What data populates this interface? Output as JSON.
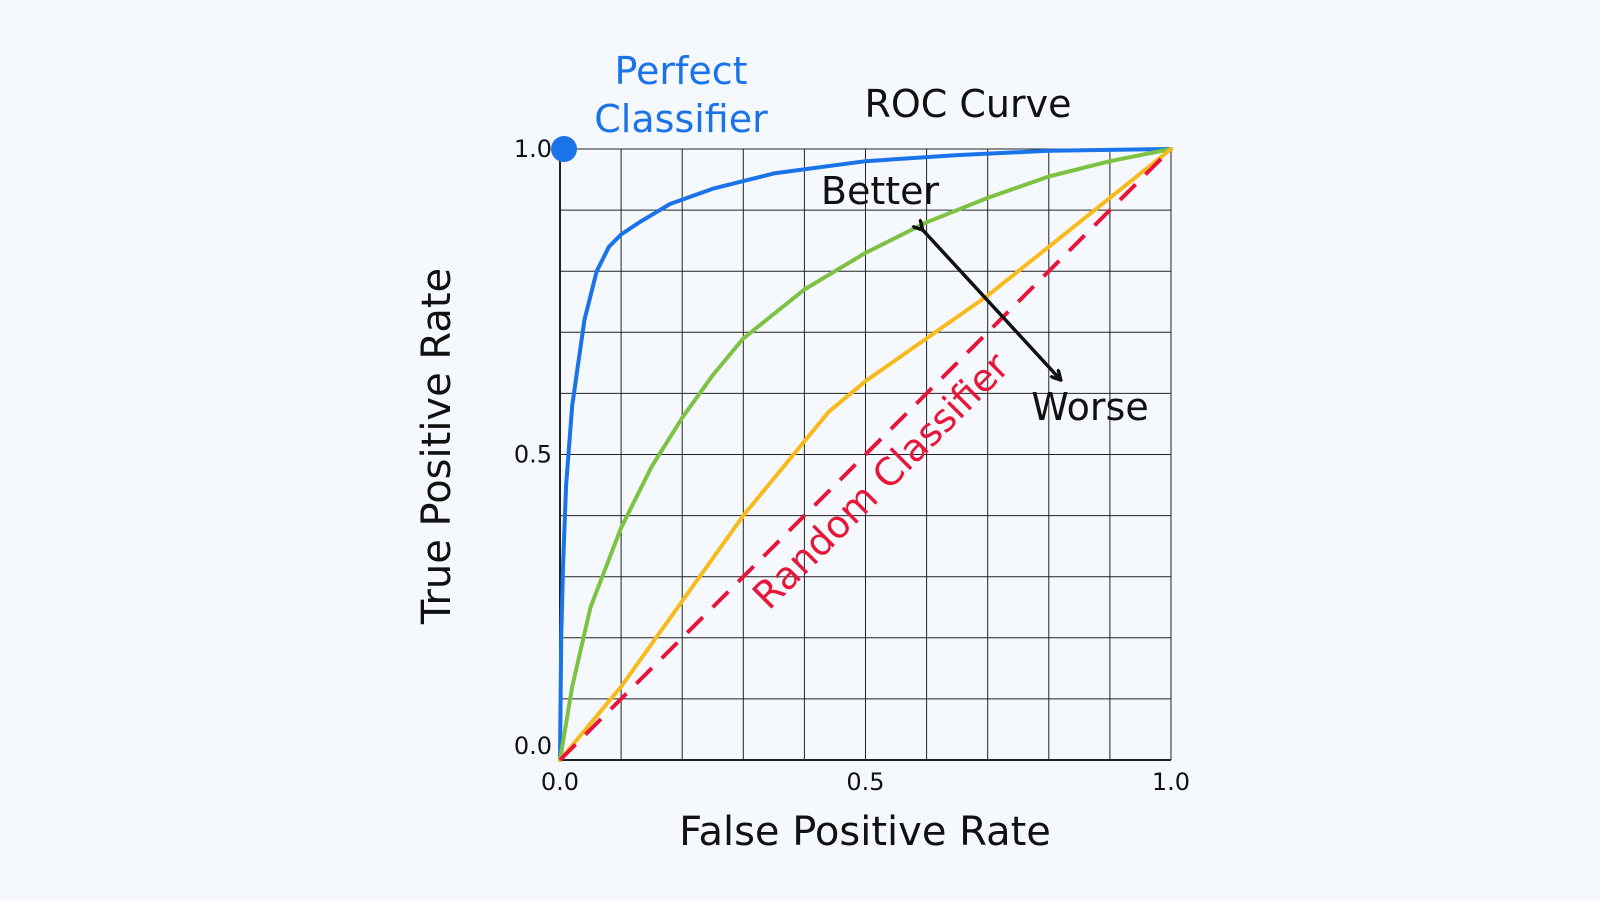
{
  "chart_data": {
    "type": "line",
    "title": "ROC Curve",
    "xlabel": "False Positive Rate",
    "ylabel": "True Positive Rate",
    "xlim": [
      0,
      1
    ],
    "ylim": [
      0,
      1
    ],
    "grid": true,
    "x_ticks": [
      "0.0",
      "0.5",
      "1.0"
    ],
    "y_ticks": [
      "0.0",
      "0.5",
      "1.0"
    ],
    "series": [
      {
        "color": "#1a73e8",
        "x": [
          0,
          0.002,
          0.005,
          0.01,
          0.02,
          0.04,
          0.06,
          0.08,
          0.1,
          0.13,
          0.18,
          0.25,
          0.35,
          0.5,
          0.65,
          0.8,
          1.0
        ],
        "y": [
          0,
          0.2,
          0.32,
          0.45,
          0.58,
          0.72,
          0.8,
          0.84,
          0.86,
          0.88,
          0.91,
          0.935,
          0.96,
          0.98,
          0.99,
          0.997,
          1.0
        ]
      },
      {
        "color": "#7dc242",
        "x": [
          0,
          0.02,
          0.05,
          0.1,
          0.15,
          0.2,
          0.25,
          0.3,
          0.4,
          0.5,
          0.6,
          0.7,
          0.8,
          0.9,
          1.0
        ],
        "y": [
          0,
          0.12,
          0.25,
          0.38,
          0.48,
          0.56,
          0.63,
          0.69,
          0.77,
          0.83,
          0.88,
          0.92,
          0.955,
          0.98,
          1.0
        ]
      },
      {
        "color": "#f7bb1d",
        "x": [
          0,
          0.1,
          0.2,
          0.3,
          0.44,
          0.5,
          0.6,
          0.7,
          0.8,
          0.9,
          1.0
        ],
        "y": [
          0,
          0.12,
          0.26,
          0.4,
          0.57,
          0.62,
          0.69,
          0.76,
          0.84,
          0.92,
          1.0
        ]
      },
      {
        "color": "#e8173a",
        "style": "dashed",
        "x": [
          0,
          1
        ],
        "y": [
          0,
          1
        ]
      }
    ],
    "points": [
      {
        "x": 0,
        "y": 1,
        "color": "#1a73e8"
      }
    ],
    "annotations": [
      {
        "text": "Perfect Classifier",
        "line1": "Perfect",
        "line2": "Classifier",
        "color": "#1a73e8"
      },
      {
        "text": "Better",
        "color": "#111111"
      },
      {
        "text": "Worse",
        "color": "#111111"
      },
      {
        "text": "Random Classifier",
        "color": "#e8173a"
      }
    ]
  }
}
